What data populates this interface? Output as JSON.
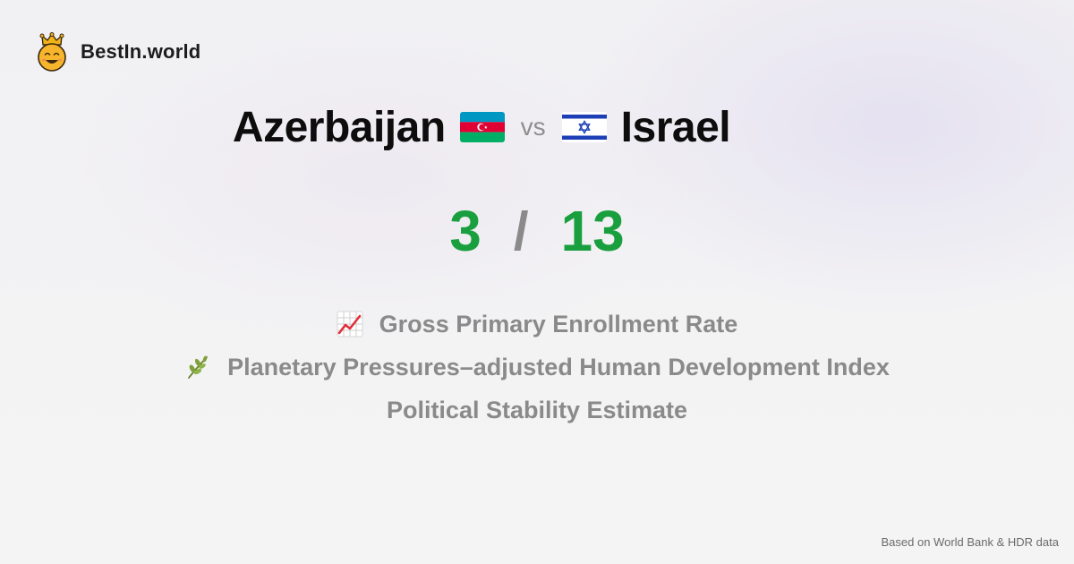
{
  "brand": {
    "name": "BestIn.world",
    "logo_icon": "crowned-smiley-icon"
  },
  "comparison": {
    "left": {
      "country": "Azerbaijan",
      "flag_icon": "azerbaijan-flag-icon",
      "score": "3"
    },
    "vs_label": "vs",
    "right": {
      "country": "Israel",
      "flag_icon": "israel-flag-icon",
      "score": "13"
    },
    "separator": "/"
  },
  "metrics": [
    {
      "label": "Gross Primary Enrollment Rate",
      "icon": "chart-increasing-icon"
    },
    {
      "label": "Planetary Pressures–adjusted Human Development Index",
      "icon": "herb-icon"
    },
    {
      "label": "Political Stability Estimate"
    }
  ],
  "footer": {
    "source_note": "Based on World Bank & HDR data"
  },
  "colors": {
    "score_green": "#1a9f3f",
    "muted_gray": "#8a8a8a",
    "title_black": "#0d0d0d"
  }
}
